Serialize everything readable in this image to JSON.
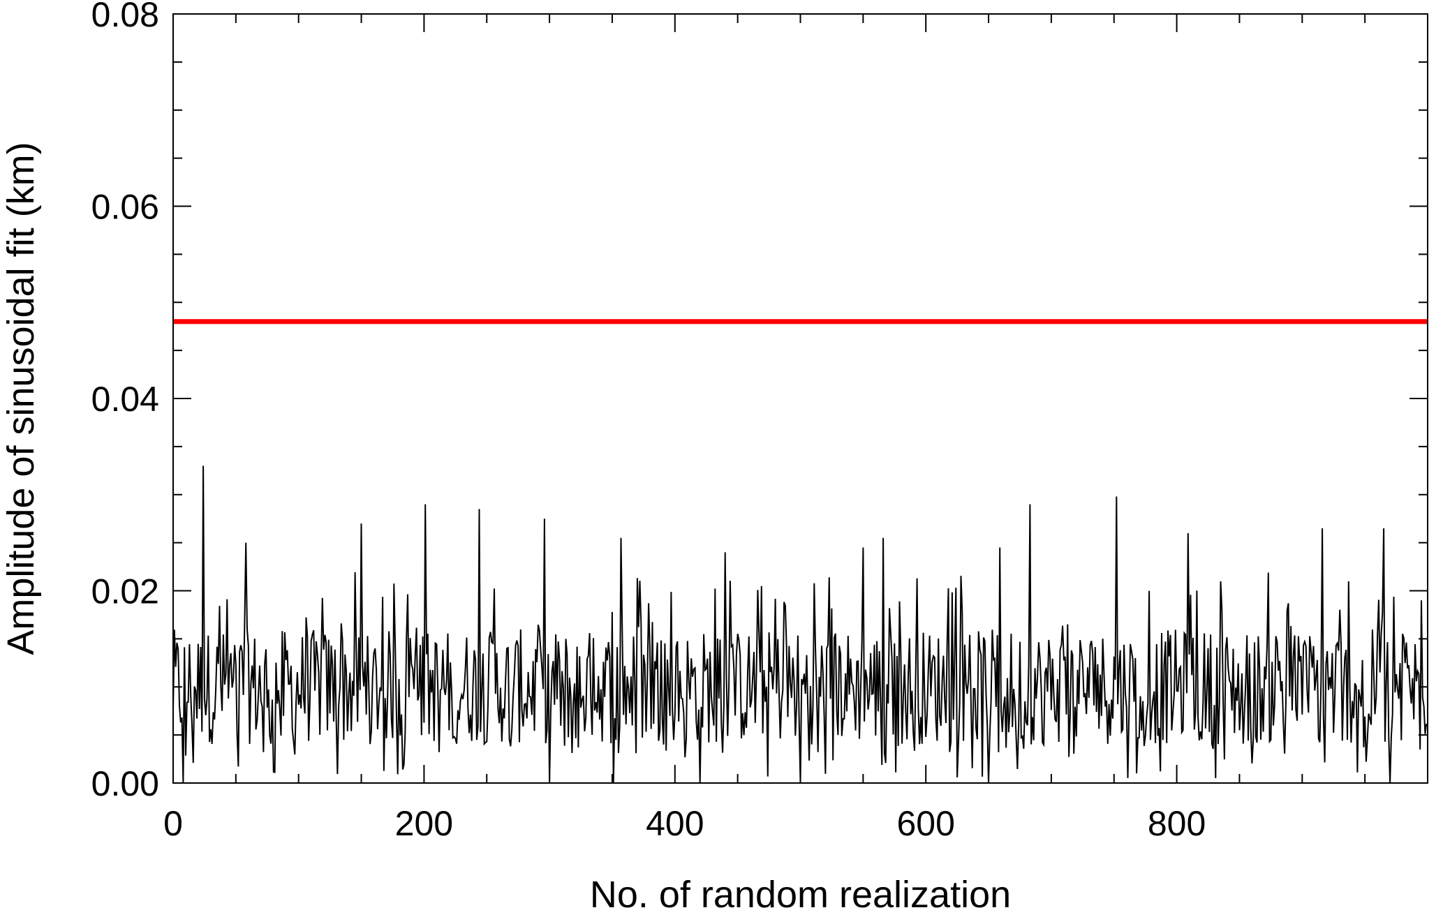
{
  "chart_data": {
    "type": "line",
    "title": "",
    "xlabel": "No. of random realization",
    "ylabel": "Amplitude of sinusoidal fit (km)",
    "xlim": [
      0,
      1000
    ],
    "ylim": [
      0,
      0.08
    ],
    "x_ticks": [
      "0",
      "200",
      "400",
      "600",
      "800"
    ],
    "y_ticks": [
      "0.00",
      "0.02",
      "0.04",
      "0.06",
      "0.08"
    ],
    "grid": false,
    "legend": "none",
    "colors": {
      "random_series": "#000000",
      "observed_amplitude": "#ff0000"
    },
    "reference_lines": [
      {
        "orientation": "horizontal",
        "y": 0.048,
        "color": "#ff0000"
      }
    ],
    "series": [
      {
        "type": "line",
        "n_points": 1000,
        "typical_range": [
          0.0,
          0.03
        ],
        "mean_approx": 0.01,
        "spikes": [
          {
            "x": 24,
            "y": 0.033
          },
          {
            "x": 58,
            "y": 0.025
          },
          {
            "x": 150,
            "y": 0.027
          },
          {
            "x": 201,
            "y": 0.029
          },
          {
            "x": 244,
            "y": 0.0285
          },
          {
            "x": 296,
            "y": 0.0275
          },
          {
            "x": 357,
            "y": 0.0255
          },
          {
            "x": 440,
            "y": 0.024
          },
          {
            "x": 550,
            "y": 0.0245
          },
          {
            "x": 566,
            "y": 0.0255
          },
          {
            "x": 659,
            "y": 0.0245
          },
          {
            "x": 683,
            "y": 0.029
          },
          {
            "x": 752,
            "y": 0.0298
          },
          {
            "x": 809,
            "y": 0.026
          },
          {
            "x": 916,
            "y": 0.0265
          },
          {
            "x": 965,
            "y": 0.0265
          }
        ],
        "dips_to_zero": [
          8,
          300,
          351,
          420,
          500,
          650,
          970
        ]
      }
    ]
  }
}
